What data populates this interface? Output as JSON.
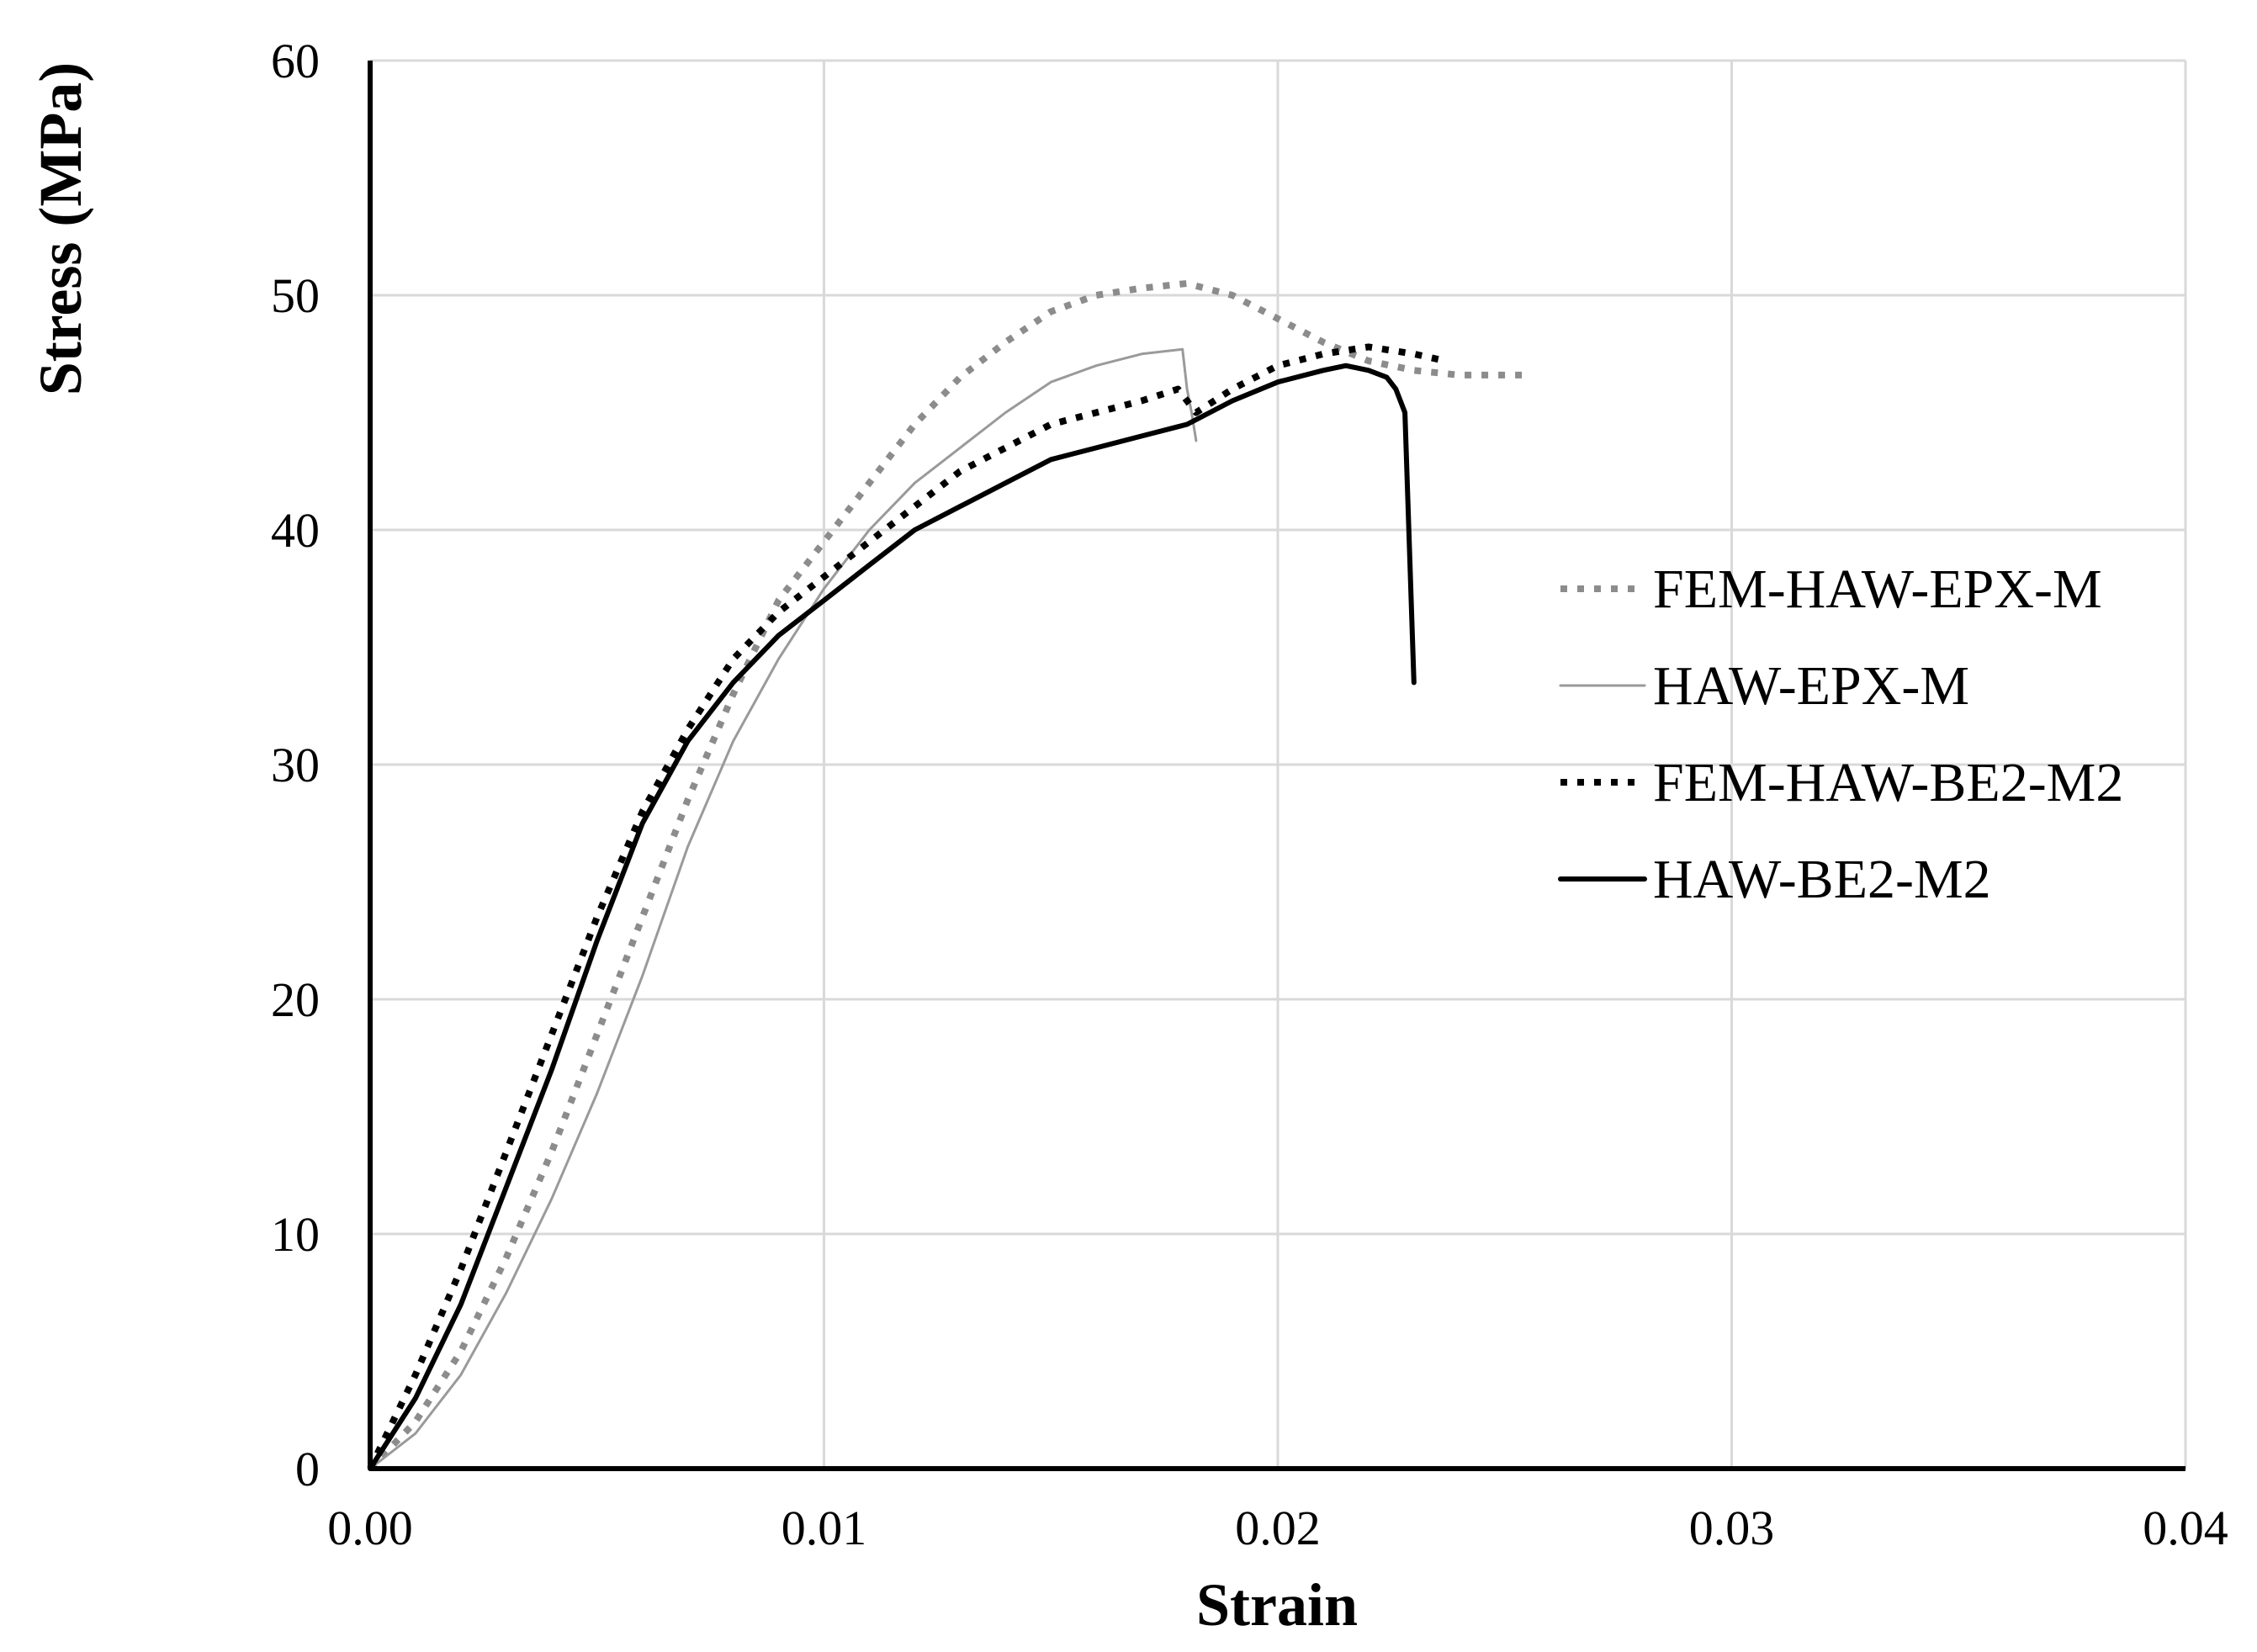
{
  "chart_data": {
    "type": "line",
    "title": "",
    "xlabel": "Strain",
    "ylabel": "Stress (MPa)",
    "xlim": [
      0,
      0.04
    ],
    "ylim": [
      0,
      60
    ],
    "x_ticks": [
      "0.00",
      "0.01",
      "0.02",
      "0.03",
      "0.04"
    ],
    "y_ticks": [
      "0",
      "10",
      "20",
      "30",
      "40",
      "50",
      "60"
    ],
    "grid": true,
    "legend_position": "right",
    "series": [
      {
        "name": "FEM-HAW-EPX-M",
        "color": "#8c8c8c",
        "style": "dotted",
        "x": [
          0.0,
          0.001,
          0.002,
          0.003,
          0.004,
          0.005,
          0.006,
          0.007,
          0.008,
          0.009,
          0.01,
          0.011,
          0.012,
          0.013,
          0.014,
          0.015,
          0.016,
          0.017,
          0.018,
          0.019,
          0.02,
          0.021,
          0.022,
          0.023,
          0.024,
          0.025,
          0.0255
        ],
        "y": [
          0.0,
          2.0,
          5.0,
          9.0,
          13.5,
          18.5,
          23.5,
          28.5,
          33.0,
          37.0,
          39.5,
          42.0,
          44.5,
          46.5,
          48.0,
          49.3,
          50.0,
          50.3,
          50.5,
          50.0,
          49.0,
          48.0,
          47.2,
          46.8,
          46.6,
          46.6,
          46.6
        ]
      },
      {
        "name": "HAW-EPX-M",
        "color": "#9a9a9a",
        "style": "solid-thin",
        "x": [
          0.0,
          0.001,
          0.002,
          0.003,
          0.004,
          0.005,
          0.006,
          0.007,
          0.008,
          0.009,
          0.01,
          0.011,
          0.012,
          0.013,
          0.014,
          0.015,
          0.016,
          0.017,
          0.0179,
          0.018,
          0.0181,
          0.0182
        ],
        "y": [
          0.0,
          1.5,
          4.0,
          7.5,
          11.5,
          16.0,
          21.0,
          26.5,
          31.0,
          34.5,
          37.5,
          40.0,
          42.0,
          43.5,
          45.0,
          46.3,
          47.0,
          47.5,
          47.7,
          46.0,
          45.0,
          43.8
        ]
      },
      {
        "name": "FEM-HAW-BE2-M2",
        "color": "#000000",
        "style": "dotted",
        "x": [
          0.0,
          0.001,
          0.002,
          0.003,
          0.004,
          0.005,
          0.006,
          0.007,
          0.008,
          0.009,
          0.01,
          0.011,
          0.012,
          0.013,
          0.014,
          0.015,
          0.016,
          0.017,
          0.0178,
          0.0182,
          0.019,
          0.02,
          0.021,
          0.022,
          0.023,
          0.0237
        ],
        "y": [
          0.0,
          4.0,
          8.5,
          13.5,
          18.5,
          23.5,
          28.0,
          31.5,
          34.5,
          36.5,
          38.0,
          39.5,
          41.0,
          42.5,
          43.5,
          44.5,
          45.0,
          45.5,
          46.0,
          45.0,
          46.0,
          47.0,
          47.5,
          47.8,
          47.5,
          47.2
        ]
      },
      {
        "name": "HAW-BE2-M2",
        "color": "#000000",
        "style": "solid",
        "x": [
          0.0,
          0.001,
          0.002,
          0.003,
          0.004,
          0.005,
          0.006,
          0.007,
          0.008,
          0.009,
          0.01,
          0.011,
          0.012,
          0.013,
          0.014,
          0.015,
          0.016,
          0.017,
          0.018,
          0.019,
          0.02,
          0.021,
          0.0215,
          0.022,
          0.0224,
          0.0226,
          0.0228,
          0.023
        ],
        "y": [
          0.0,
          3.0,
          7.0,
          12.0,
          17.0,
          22.5,
          27.5,
          31.0,
          33.5,
          35.5,
          37.0,
          38.5,
          40.0,
          41.0,
          42.0,
          43.0,
          43.5,
          44.0,
          44.5,
          45.5,
          46.3,
          46.8,
          47.0,
          46.8,
          46.5,
          46.0,
          45.0,
          33.5
        ]
      }
    ]
  }
}
